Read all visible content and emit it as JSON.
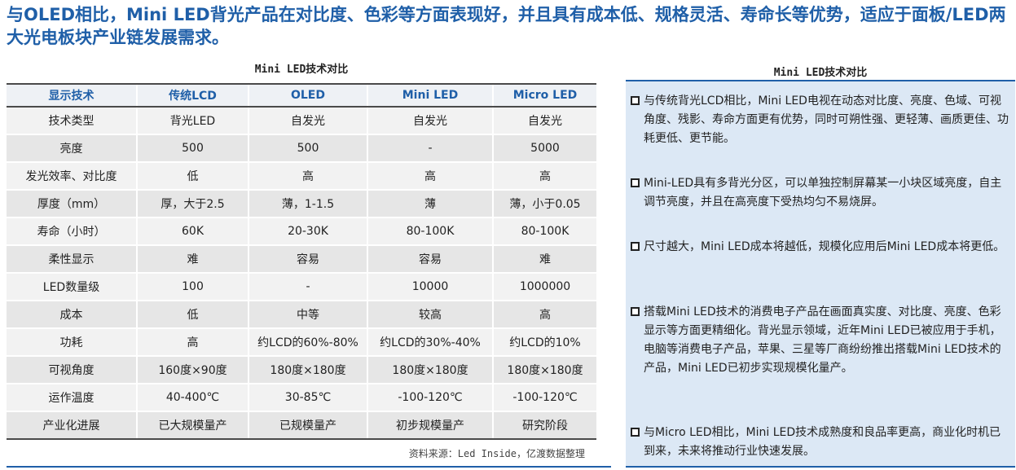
{
  "headline": "与OLED相比，Mini LED背光产品在对比度、色彩等方面表现好，并且具有成本低、规格灵活、寿命长等优势，适应于面板/LED两大光电板块产业链发展需求。",
  "table": {
    "title": "Mini LED技术对比",
    "headers": [
      "显示技术",
      "传统LCD",
      "OLED",
      "Mini LED",
      "Micro LED"
    ],
    "rows": [
      [
        "技术类型",
        "背光LED",
        "自发光",
        "自发光",
        "自发光"
      ],
      [
        "亮度",
        "500",
        "500",
        "-",
        "5000"
      ],
      [
        "发光效率、对比度",
        "低",
        "高",
        "高",
        "高"
      ],
      [
        "厚度（mm）",
        "厚，大于2.5",
        "薄，1-1.5",
        "薄",
        "薄，小于0.05"
      ],
      [
        "寿命（小时）",
        "60K",
        "20-30K",
        "80-100K",
        "80-100K"
      ],
      [
        "柔性显示",
        "难",
        "容易",
        "容易",
        "难"
      ],
      [
        "LED数量级",
        "100",
        "-",
        "10000",
        "1000000"
      ],
      [
        "成本",
        "低",
        "中等",
        "较高",
        "高"
      ],
      [
        "功耗",
        "高",
        "约LCD的60%-80%",
        "约LCD的30%-40%",
        "约LCD的10%"
      ],
      [
        "可视角度",
        "160度×90度",
        "180度×180度",
        "180度×180度",
        "180度×180度"
      ],
      [
        "运作温度",
        "40-400℃",
        "30-85℃",
        "-100-120℃",
        "-100-120℃"
      ],
      [
        "产业化进展",
        "已大规模量产",
        "已规模量产",
        "初步规模量产",
        "研究阶段"
      ]
    ],
    "source": "资料来源：Led Inside，亿渡数据整理"
  },
  "side": {
    "title": "Mini LED技术对比",
    "bullets": [
      "与传统背光LCD相比，Mini LED电视在动态对比度、亮度、色域、可视角度、残影、寿命方面更有优势，同时可朔性强、更轻薄、画质更佳、功耗更低、更节能。",
      "Mini-LED具有多背光分区，可以单独控制屏幕某一小块区域亮度，自主调节亮度，并且在高亮度下受热均匀不易烧屏。",
      "尺寸越大，Mini LED成本将越低，规模化应用后Mini LED成本将更低。",
      "搭载Mini LED技术的消费电子产品在画面真实度、对比度、亮度、色彩显示等方面更精细化。背光显示领域，近年Mini LED已被应用于手机，电脑等消费电子产品，苹果、三星等厂商纷纷推出搭载Mini LED技术的产品，Mini LED已初步实现规模化量产。",
      "与Micro LED相比，Mini LED技术成熟度和良品率更高，商业化时机已到来，未来将推动行业快速发展。"
    ]
  },
  "colors": {
    "accent": "#1f5fa8",
    "panel": "#dce8f5",
    "row_light": "#f2f2f2",
    "row_dark": "#e6e6e6"
  }
}
